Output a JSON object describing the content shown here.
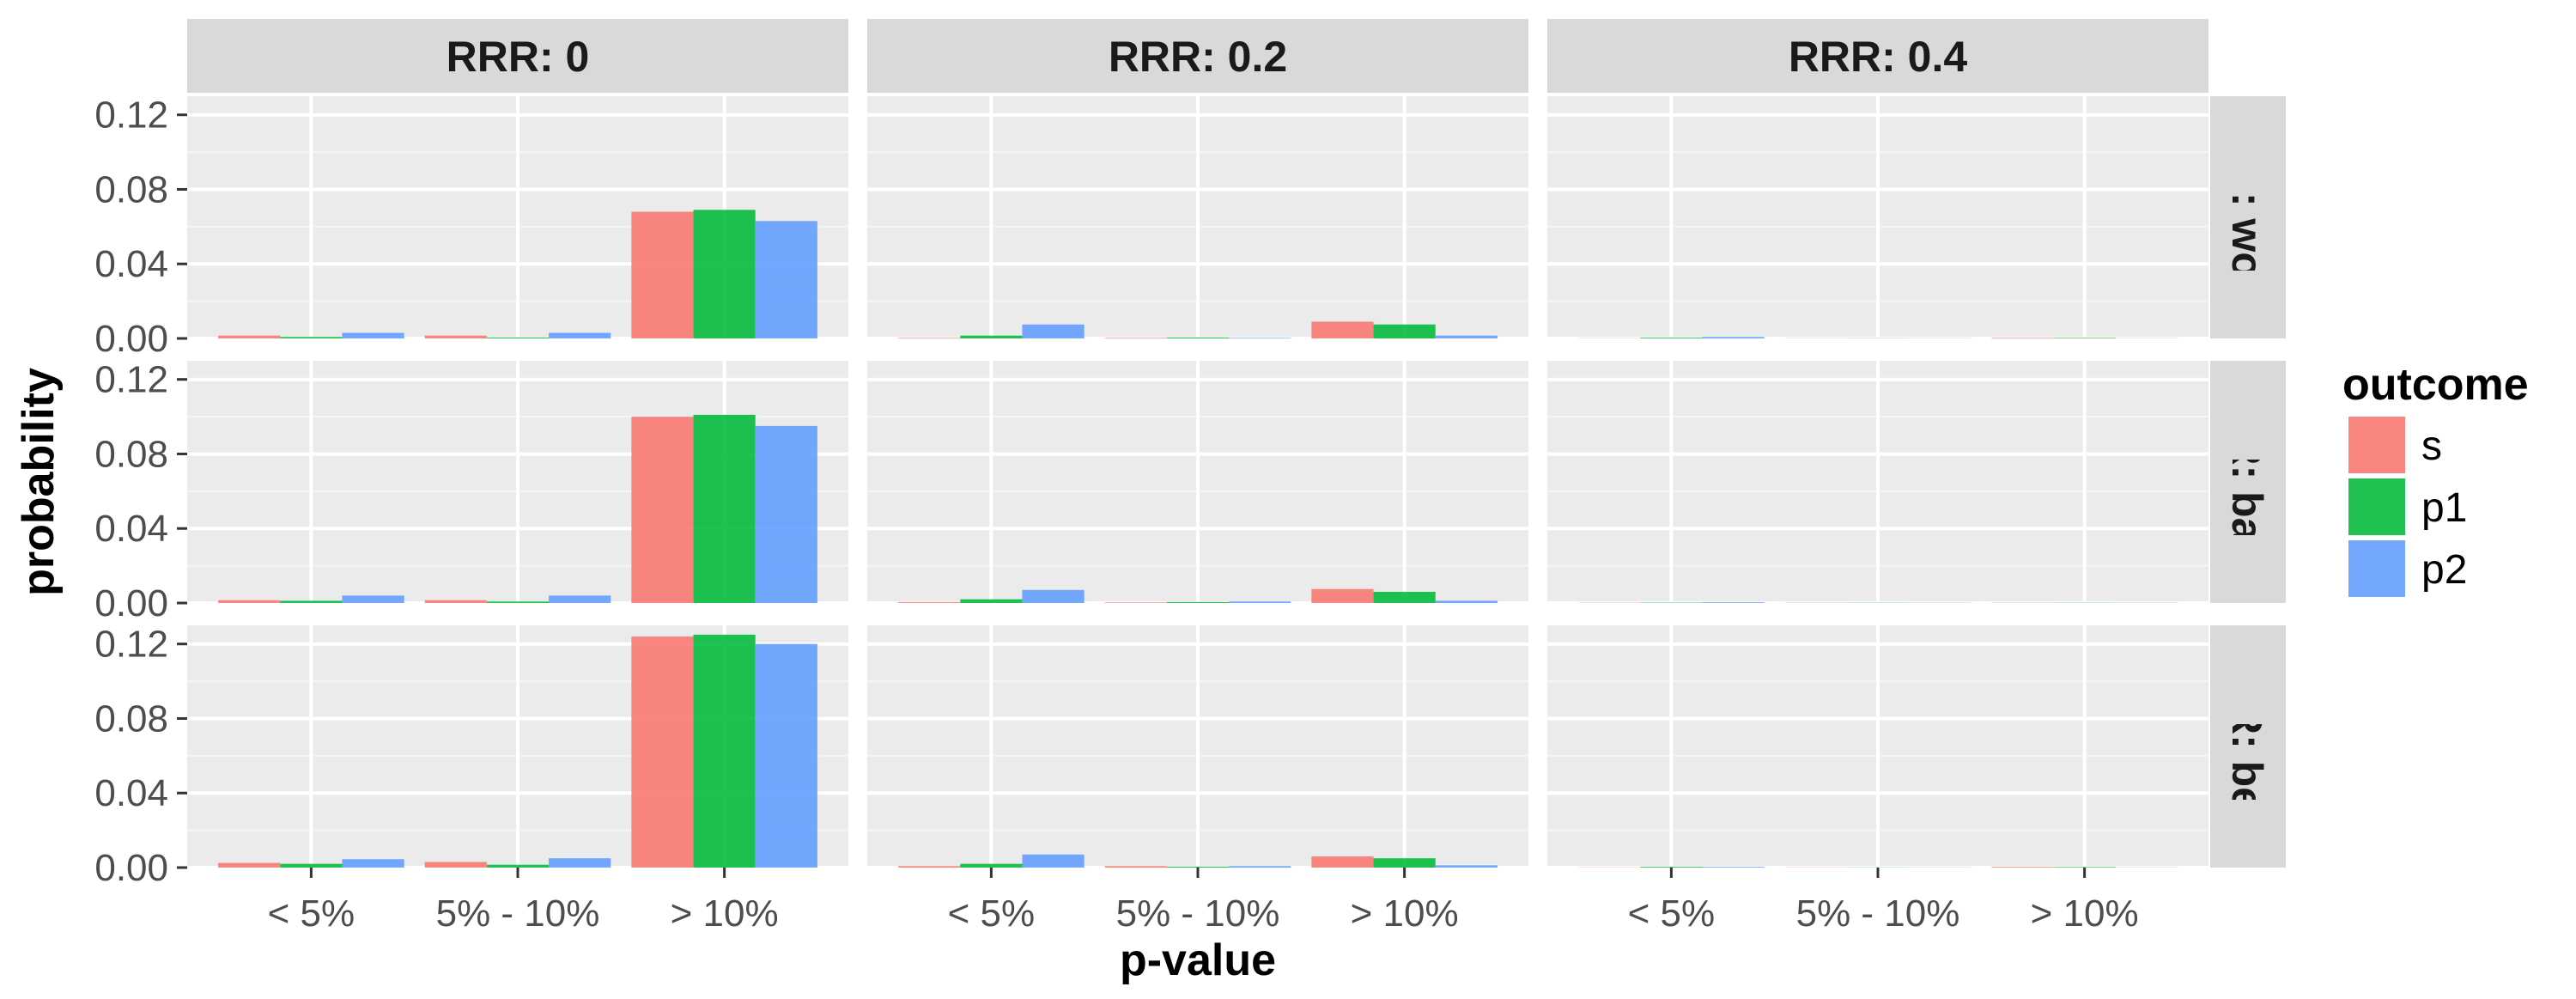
{
  "chart_data": {
    "type": "bar",
    "facet_columns": [
      "RRR: 0",
      "RRR: 0.2",
      "RRR: 0.4"
    ],
    "facet_rows": [
      "CER: worst",
      "CER: base",
      "CER: best"
    ],
    "categories": [
      "< 5%",
      "5% - 10%",
      "> 10%"
    ],
    "series_names": [
      "s",
      "p1",
      "p2"
    ],
    "colors": [
      "#F8766D",
      "#00BA38",
      "#619CFF"
    ],
    "xlabel": "p-value",
    "ylabel": "probability",
    "ylim": [
      0,
      0.13
    ],
    "yticks": [
      0.0,
      0.04,
      0.08,
      0.12
    ],
    "ytick_labels": [
      "0.00",
      "0.04",
      "0.08",
      "0.12"
    ],
    "legend": {
      "title": "outcome",
      "position": "right"
    },
    "grid": true,
    "panels": [
      {
        "col": 0,
        "row": 0,
        "series": [
          {
            "name": "s",
            "values": [
              0.0015,
              0.0015,
              0.068
            ]
          },
          {
            "name": "p1",
            "values": [
              0.0008,
              0.0005,
              0.069
            ]
          },
          {
            "name": "p2",
            "values": [
              0.003,
              0.003,
              0.063
            ]
          }
        ]
      },
      {
        "col": 0,
        "row": 1,
        "series": [
          {
            "name": "s",
            "values": [
              0.0015,
              0.0015,
              0.1
            ]
          },
          {
            "name": "p1",
            "values": [
              0.0012,
              0.0008,
              0.101
            ]
          },
          {
            "name": "p2",
            "values": [
              0.004,
              0.004,
              0.095
            ]
          }
        ]
      },
      {
        "col": 0,
        "row": 2,
        "series": [
          {
            "name": "s",
            "values": [
              0.0025,
              0.003,
              0.124
            ]
          },
          {
            "name": "p1",
            "values": [
              0.002,
              0.0015,
              0.125
            ]
          },
          {
            "name": "p2",
            "values": [
              0.0045,
              0.005,
              0.12
            ]
          }
        ]
      },
      {
        "col": 1,
        "row": 0,
        "series": [
          {
            "name": "s",
            "values": [
              0.0003,
              0.0003,
              0.009
            ]
          },
          {
            "name": "p1",
            "values": [
              0.0015,
              0.0005,
              0.0075
            ]
          },
          {
            "name": "p2",
            "values": [
              0.0075,
              0.0003,
              0.0015
            ]
          }
        ]
      },
      {
        "col": 1,
        "row": 1,
        "series": [
          {
            "name": "s",
            "values": [
              0.0005,
              0.0003,
              0.0075
            ]
          },
          {
            "name": "p1",
            "values": [
              0.002,
              0.0005,
              0.006
            ]
          },
          {
            "name": "p2",
            "values": [
              0.007,
              0.0008,
              0.0012
            ]
          }
        ]
      },
      {
        "col": 1,
        "row": 2,
        "series": [
          {
            "name": "s",
            "values": [
              0.0008,
              0.0008,
              0.006
            ]
          },
          {
            "name": "p1",
            "values": [
              0.002,
              0.0005,
              0.005
            ]
          },
          {
            "name": "p2",
            "values": [
              0.007,
              0.0008,
              0.0012
            ]
          }
        ]
      },
      {
        "col": 2,
        "row": 0,
        "series": [
          {
            "name": "s",
            "values": [
              0.0001,
              0.0001,
              0.0003
            ]
          },
          {
            "name": "p1",
            "values": [
              0.0004,
              0.0001,
              0.0003
            ]
          },
          {
            "name": "p2",
            "values": [
              0.0008,
              0.0001,
              0.0001
            ]
          }
        ]
      },
      {
        "col": 2,
        "row": 1,
        "series": [
          {
            "name": "s",
            "values": [
              0.0001,
              0.0001,
              0.0001
            ]
          },
          {
            "name": "p1",
            "values": [
              0.0002,
              0.0001,
              0.0001
            ]
          },
          {
            "name": "p2",
            "values": [
              0.0004,
              0.0001,
              0.0001
            ]
          }
        ]
      },
      {
        "col": 2,
        "row": 2,
        "series": [
          {
            "name": "s",
            "values": [
              0.0001,
              0.0001,
              0.0004
            ]
          },
          {
            "name": "p1",
            "values": [
              0.0004,
              0.0001,
              0.0003
            ]
          },
          {
            "name": "p2",
            "values": [
              0.0004,
              0.0001,
              0.0001
            ]
          }
        ]
      }
    ]
  }
}
